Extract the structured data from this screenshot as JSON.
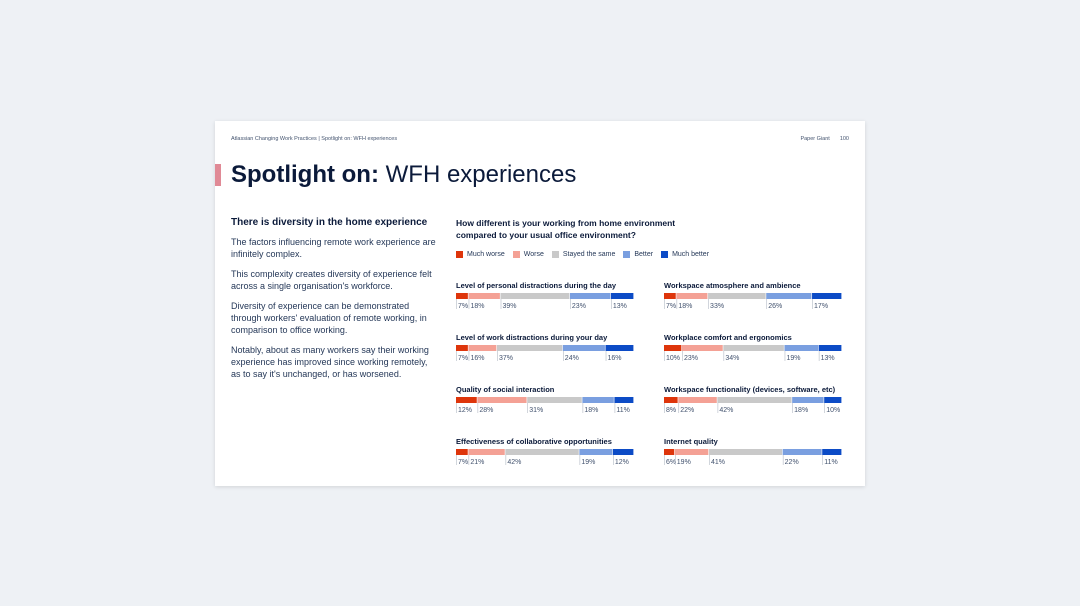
{
  "header": {
    "breadcrumb": "Atlassian Changing Work Practices | Spotlight on: WFH experiences",
    "brand": "Paper Giant",
    "page_number": "100"
  },
  "title": {
    "bold": "Spotlight on:",
    "light": "WFH experiences"
  },
  "left": {
    "subhead": "There is diversity in the home experience",
    "paragraphs": [
      "The factors influencing remote work experience are infinitely complex.",
      "This complexity creates diversity of experience felt across a single organisation's workforce.",
      "Diversity of experience can be demonstrated through workers' evaluation of remote working, in comparison to office working.",
      "Notably, about as many workers say their working experience has improved since working remotely, as to say it's unchanged, or has worsened."
    ]
  },
  "chart_data": {
    "type": "bar",
    "stacked": true,
    "title": "How different is your working from home environment compared to your usual office environment?",
    "legend": [
      {
        "name": "Much worse",
        "color": "#de350b"
      },
      {
        "name": "Worse",
        "color": "#f4a195"
      },
      {
        "name": "Stayed the same",
        "color": "#c9c9c9"
      },
      {
        "name": "Better",
        "color": "#7a9fe0"
      },
      {
        "name": "Much better",
        "color": "#0c4bc6"
      }
    ],
    "charts": [
      {
        "title": "Level of personal distractions during the day",
        "values": [
          7,
          18,
          39,
          23,
          13
        ],
        "labels": [
          "7%",
          "18%",
          "39%",
          "23%",
          "13%"
        ]
      },
      {
        "title": "Workspace atmosphere and ambience",
        "values": [
          7,
          18,
          33,
          26,
          17
        ],
        "labels": [
          "7%",
          "18%",
          "33%",
          "26%",
          "17%"
        ]
      },
      {
        "title": "Level of work distractions during your day",
        "values": [
          7,
          16,
          37,
          24,
          16
        ],
        "labels": [
          "7%",
          "16%",
          "37%",
          "24%",
          "16%"
        ]
      },
      {
        "title": "Workplace comfort and ergonomics",
        "values": [
          10,
          23,
          34,
          19,
          13
        ],
        "labels": [
          "10%",
          "23%",
          "34%",
          "19%",
          "13%"
        ]
      },
      {
        "title": "Quality of social interaction",
        "values": [
          12,
          28,
          31,
          18,
          11
        ],
        "labels": [
          "12%",
          "28%",
          "31%",
          "18%",
          "11%"
        ]
      },
      {
        "title": "Workspace functionality (devices, software, etc)",
        "values": [
          8,
          22,
          42,
          18,
          10
        ],
        "labels": [
          "8%",
          "22%",
          "42%",
          "18%",
          "10%"
        ]
      },
      {
        "title": "Effectiveness of collaborative opportunities",
        "values": [
          7,
          21,
          42,
          19,
          12
        ],
        "labels": [
          "7%",
          "21%",
          "42%",
          "19%",
          "12%"
        ]
      },
      {
        "title": "Internet quality",
        "values": [
          6,
          19,
          41,
          22,
          11
        ],
        "labels": [
          "6%",
          "19%",
          "41%",
          "22%",
          "11%"
        ]
      }
    ]
  }
}
